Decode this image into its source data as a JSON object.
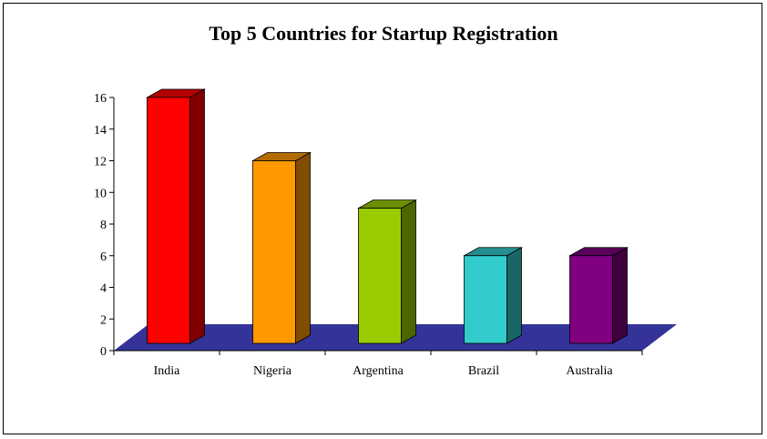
{
  "chart_data": {
    "type": "bar",
    "title": "Top 5 Countries for Startup Registration",
    "xlabel": "",
    "ylabel": "",
    "categories": [
      "India",
      "Nigeria",
      "Argentina",
      "Brazil",
      "Australia"
    ],
    "values": [
      16,
      12,
      9,
      6,
      6
    ],
    "ylim": [
      0,
      16
    ],
    "yticks": [
      0,
      2,
      4,
      6,
      8,
      10,
      12,
      14,
      16
    ],
    "colors": [
      "#ff0000",
      "#ff9900",
      "#99cc00",
      "#33cccc",
      "#800080"
    ],
    "floor_color": "#333399",
    "grid": false,
    "legend": "none",
    "style": "3d"
  }
}
